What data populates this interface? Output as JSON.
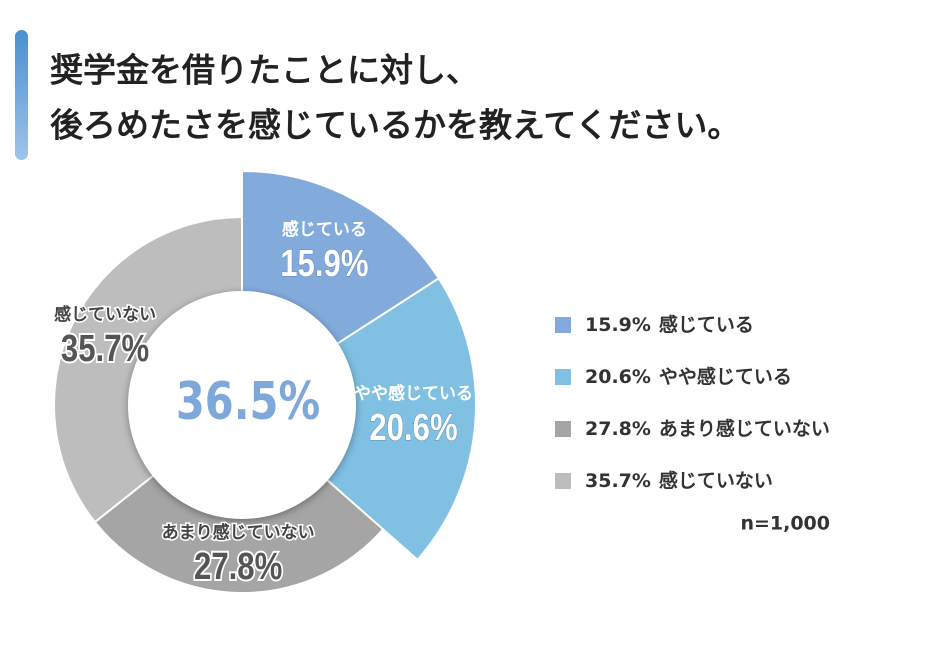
{
  "chart_data": {
    "type": "donut",
    "title_lines": [
      "奨学金を借りたことに対し、",
      "後ろめたさを感じているかを教えてください。"
    ],
    "center_label": "36.5%",
    "series": [
      {
        "name": "感じている",
        "color": "#82aadb",
        "values": [
          15.9
        ],
        "value_labels": [
          "15.9%"
        ]
      },
      {
        "name": "やや感じている",
        "color": "#80c0e2",
        "values": [
          20.6
        ],
        "value_labels": [
          "20.6%"
        ]
      },
      {
        "name": "あまり感じていない",
        "color": "#a5a5a5",
        "values": [
          27.8
        ],
        "value_labels": [
          "27.8%"
        ]
      },
      {
        "name": "感じていない",
        "color": "#bdbdbd",
        "values": [
          35.7
        ],
        "value_labels": [
          "35.7%"
        ]
      }
    ],
    "note": "n=1,000"
  }
}
